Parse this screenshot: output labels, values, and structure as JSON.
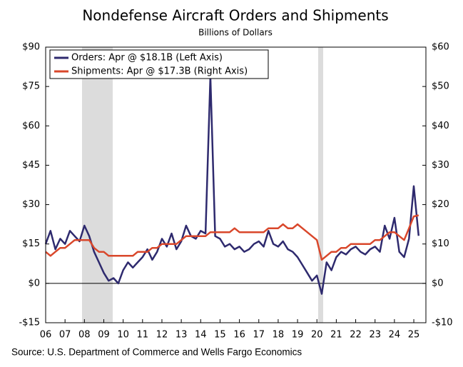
{
  "chart_data": {
    "type": "line",
    "title": "Nondefense Aircraft Orders and Shipments",
    "subtitle": "Billions of Dollars",
    "source": "Source: U.S. Department of Commerce and Wells Fargo Economics",
    "categories": [
      "06",
      null,
      null,
      null,
      "07",
      null,
      null,
      null,
      "08",
      null,
      null,
      null,
      "09",
      null,
      null,
      null,
      "10",
      null,
      null,
      null,
      "11",
      null,
      null,
      null,
      "12",
      null,
      null,
      null,
      "13",
      null,
      null,
      null,
      "14",
      null,
      null,
      null,
      "15",
      null,
      null,
      null,
      "16",
      null,
      null,
      null,
      "17",
      null,
      null,
      null,
      "18",
      null,
      null,
      null,
      "19",
      null,
      null,
      null,
      "20",
      null,
      null,
      null,
      "21",
      null,
      null,
      null,
      "22",
      null,
      null,
      null,
      "23",
      null,
      null,
      null,
      "24",
      null,
      null,
      null,
      "25",
      null
    ],
    "series": [
      {
        "name": "Orders: Apr @ $18.1B (Left Axis)",
        "color": "#2e2a6e",
        "axis": "y",
        "values": [
          15,
          20,
          13,
          17,
          15,
          20,
          18,
          16,
          22,
          18,
          12,
          8,
          4,
          1,
          2,
          0,
          5,
          8,
          6,
          8,
          10,
          13,
          9,
          12,
          17,
          14,
          19,
          13,
          16,
          22,
          18,
          17,
          20,
          19,
          79,
          18,
          17,
          14,
          15,
          13,
          14,
          12,
          13,
          15,
          16,
          14,
          20,
          15,
          14,
          16,
          13,
          12,
          10,
          7,
          4,
          1,
          3,
          -4,
          8,
          5,
          10,
          12,
          11,
          13,
          14,
          12,
          11,
          13,
          14,
          12,
          22,
          17,
          25,
          12,
          10,
          17,
          37,
          18.1
        ]
      },
      {
        "name": "Shipments: Apr @ $17.3B (Right Axis)",
        "color": "#d9472b",
        "axis": "y2",
        "values": [
          8,
          7,
          8,
          9,
          9,
          10,
          11,
          11,
          11,
          11,
          9,
          8,
          8,
          7,
          7,
          7,
          7,
          7,
          7,
          8,
          8,
          8,
          9,
          9,
          10,
          10,
          10,
          10,
          11,
          12,
          12,
          12,
          12,
          12,
          13,
          13,
          13,
          13,
          13,
          14,
          13,
          13,
          13,
          13,
          13,
          13,
          14,
          14,
          14,
          15,
          14,
          14,
          15,
          14,
          13,
          12,
          11,
          6,
          7,
          8,
          8,
          9,
          9,
          10,
          10,
          10,
          10,
          10,
          11,
          11,
          12,
          13,
          13,
          12,
          11,
          14,
          17,
          17.3
        ]
      }
    ],
    "ylim": [
      -15,
      90
    ],
    "yticks": [
      {
        "value": -15,
        "label": "-$15"
      },
      {
        "value": 0,
        "label": "$0"
      },
      {
        "value": 15,
        "label": "$15"
      },
      {
        "value": 30,
        "label": "$30"
      },
      {
        "value": 45,
        "label": "$45"
      },
      {
        "value": 60,
        "label": "$60"
      },
      {
        "value": 75,
        "label": "$75"
      },
      {
        "value": 90,
        "label": "$90"
      }
    ],
    "y2lim": [
      -10,
      60
    ],
    "y2ticks": [
      {
        "value": -10,
        "label": "-$10"
      },
      {
        "value": 0,
        "label": "$0"
      },
      {
        "value": 10,
        "label": "$10"
      },
      {
        "value": 20,
        "label": "$20"
      },
      {
        "value": 30,
        "label": "$30"
      },
      {
        "value": 40,
        "label": "$40"
      },
      {
        "value": 50,
        "label": "$50"
      },
      {
        "value": 60,
        "label": "$60"
      }
    ],
    "zero_line": true
  }
}
